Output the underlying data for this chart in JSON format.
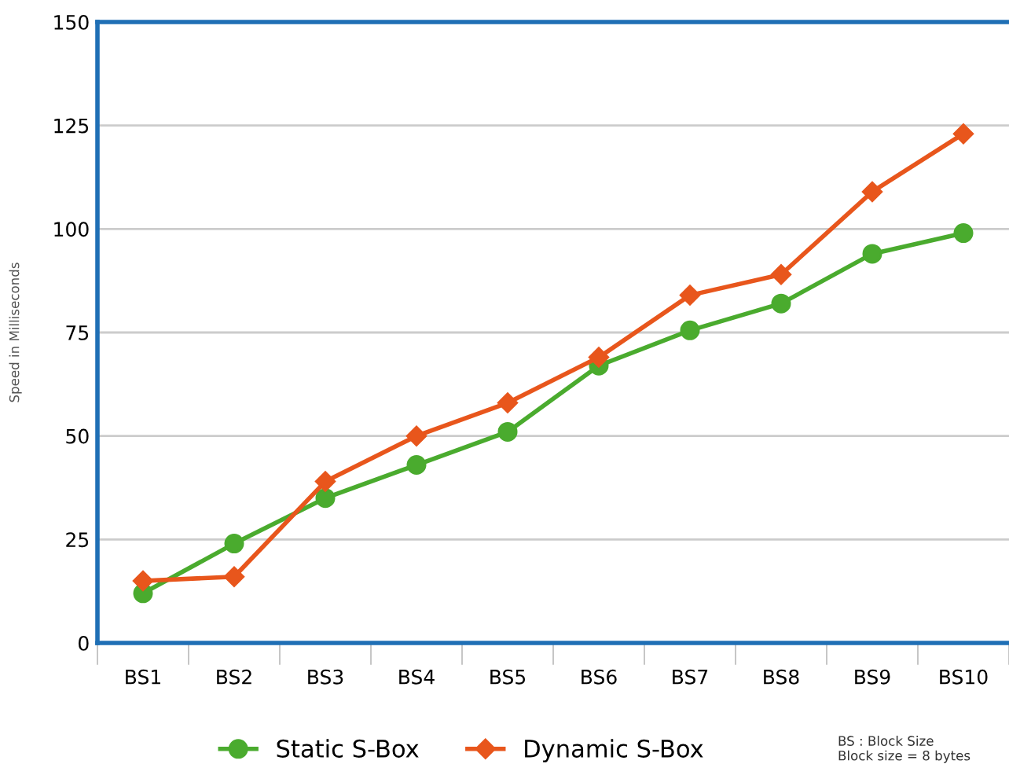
{
  "chart_data": {
    "type": "line",
    "ylabel": "Speed in Milliseconds",
    "categories": [
      "BS1",
      "BS2",
      "BS3",
      "BS4",
      "BS5",
      "BS6",
      "BS7",
      "BS8",
      "BS9",
      "BS10"
    ],
    "series": [
      {
        "name": "Static S-Box",
        "color": "#4aab2e",
        "marker": "circle",
        "values": [
          12,
          24,
          35,
          43,
          51,
          67,
          75.5,
          82,
          94,
          99
        ]
      },
      {
        "name": "Dynamic S-Box",
        "color": "#e8561c",
        "marker": "diamond",
        "values": [
          15,
          16,
          39,
          50,
          58,
          69,
          84,
          89,
          109,
          123
        ]
      }
    ],
    "ylim": [
      0,
      150
    ],
    "yticks": [
      0,
      25,
      50,
      75,
      100,
      125,
      150
    ],
    "grid": "y",
    "legend": "bottom",
    "annotations": [
      "BS : Block Size\nBlock size = 8 bytes"
    ]
  }
}
